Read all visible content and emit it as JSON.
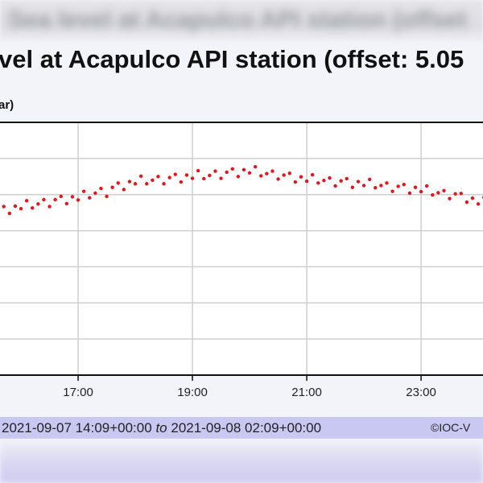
{
  "chart_data": {
    "type": "scatter",
    "title": "vel at Acapulco API station (offset: 5.05",
    "ylabel": "ar)",
    "xlabel": "",
    "x_tick_labels": [
      "17:00",
      "19:00",
      "21:00",
      "23:00"
    ],
    "xlim": [
      "15:38",
      "00:05"
    ],
    "ylim": [
      0,
      7
    ],
    "grid": true,
    "marker_color": "#e8141c",
    "x": [
      "15:42",
      "15:48",
      "15:54",
      "16:00",
      "16:06",
      "16:12",
      "16:18",
      "16:24",
      "16:30",
      "16:36",
      "16:42",
      "16:48",
      "16:54",
      "17:00",
      "17:06",
      "17:12",
      "17:18",
      "17:24",
      "17:30",
      "17:36",
      "17:42",
      "17:48",
      "17:54",
      "18:00",
      "18:06",
      "18:12",
      "18:18",
      "18:24",
      "18:30",
      "18:36",
      "18:42",
      "18:48",
      "18:54",
      "19:00",
      "19:06",
      "19:12",
      "19:18",
      "19:24",
      "19:30",
      "19:36",
      "19:42",
      "19:48",
      "19:54",
      "20:00",
      "20:06",
      "20:12",
      "20:18",
      "20:24",
      "20:30",
      "20:36",
      "20:42",
      "20:48",
      "20:54",
      "21:00",
      "21:06",
      "21:12",
      "21:18",
      "21:24",
      "21:30",
      "21:36",
      "21:42",
      "21:48",
      "21:54",
      "22:00",
      "22:06",
      "22:12",
      "22:18",
      "22:24",
      "22:30",
      "22:36",
      "22:42",
      "22:48",
      "22:54",
      "23:00",
      "23:06",
      "23:12",
      "23:18",
      "23:24",
      "23:30",
      "23:36",
      "23:42",
      "23:48",
      "23:54",
      "00:00",
      "00:06"
    ],
    "y": [
      4.67,
      4.48,
      4.68,
      4.61,
      4.83,
      4.63,
      4.74,
      4.86,
      4.67,
      4.86,
      4.95,
      4.75,
      4.94,
      4.85,
      5.09,
      4.91,
      5.04,
      5.17,
      4.95,
      5.2,
      5.32,
      5.14,
      5.36,
      5.3,
      5.51,
      5.3,
      5.4,
      5.5,
      5.3,
      5.47,
      5.56,
      5.35,
      5.54,
      5.45,
      5.66,
      5.44,
      5.53,
      5.65,
      5.45,
      5.62,
      5.71,
      5.5,
      5.69,
      5.6,
      5.77,
      5.52,
      5.58,
      5.65,
      5.43,
      5.54,
      5.59,
      5.35,
      5.49,
      5.37,
      5.55,
      5.32,
      5.39,
      5.46,
      5.24,
      5.38,
      5.44,
      5.2,
      5.36,
      5.25,
      5.42,
      5.19,
      5.25,
      5.32,
      5.09,
      5.23,
      5.28,
      5.04,
      5.2,
      5.08,
      5.24,
      4.99,
      5.05,
      5.11,
      4.89,
      5.02,
      5.03,
      4.79,
      4.9,
      4.74,
      4.92
    ]
  },
  "footer": {
    "range_start": "2021-09-07 14:09+00:00",
    "range_to": "to",
    "range_end": "2021-09-08 02:09+00:00",
    "credit": "©IOC-V"
  }
}
